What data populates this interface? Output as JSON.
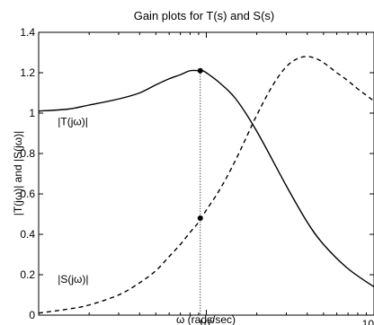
{
  "chart_data": {
    "type": "line",
    "title": "Gain plots for T(s) and S(s)",
    "xlabel": "ω (rads/sec)",
    "ylabel": "|T(jω)| and |S(jω)|",
    "x_scale": "log",
    "xlim": [
      0.1,
      10
    ],
    "ylim": [
      0,
      1.4
    ],
    "x_ticks": [
      {
        "value": 1,
        "label_base": "10",
        "label_exp": "0"
      },
      {
        "value": 10,
        "label_base": "10",
        "label_exp": ""
      }
    ],
    "y_ticks": [
      {
        "value": 0,
        "label": "0"
      },
      {
        "value": 0.2,
        "label": "0.2"
      },
      {
        "value": 0.4,
        "label": "0.4"
      },
      {
        "value": 0.6,
        "label": "0.6"
      },
      {
        "value": 0.8,
        "label": "0.8"
      },
      {
        "value": 1,
        "label": "1"
      },
      {
        "value": 1.2,
        "label": "1.2"
      },
      {
        "value": 1.4,
        "label": "1.4"
      }
    ],
    "grid": false,
    "series": [
      {
        "name": "|T(jω)|",
        "style": "solid",
        "x": [
          0.1,
          0.15,
          0.2,
          0.3,
          0.4,
          0.5,
          0.6,
          0.7,
          0.8,
          0.9,
          0.95,
          1.0,
          1.2,
          1.5,
          2.0,
          3.0,
          4.0,
          5.0,
          7.0,
          10.0
        ],
        "y": [
          1.01,
          1.02,
          1.04,
          1.07,
          1.1,
          1.14,
          1.17,
          1.19,
          1.21,
          1.21,
          1.21,
          1.2,
          1.15,
          1.07,
          0.91,
          0.64,
          0.46,
          0.35,
          0.23,
          0.14
        ]
      },
      {
        "name": "|S(jω)|",
        "style": "dashed",
        "x": [
          0.1,
          0.15,
          0.2,
          0.3,
          0.4,
          0.5,
          0.6,
          0.7,
          0.8,
          0.9,
          1.0,
          1.2,
          1.5,
          2.0,
          2.5,
          3.0,
          3.5,
          4.0,
          4.5,
          5.0,
          6.0,
          7.0,
          8.0,
          10.0
        ],
        "y": [
          0.01,
          0.03,
          0.05,
          0.1,
          0.16,
          0.22,
          0.29,
          0.35,
          0.41,
          0.46,
          0.52,
          0.62,
          0.77,
          0.99,
          1.14,
          1.23,
          1.27,
          1.28,
          1.27,
          1.25,
          1.2,
          1.16,
          1.12,
          1.06
        ]
      }
    ],
    "annotations": [
      {
        "text": "|T(jω)|",
        "x": 0.13,
        "y": 0.94
      },
      {
        "text": "|S(jω)|",
        "x": 0.13,
        "y": 0.16
      }
    ],
    "markers": [
      {
        "x": 0.92,
        "y": 1.21
      },
      {
        "x": 0.92,
        "y": 0.48
      }
    ],
    "vline_x": 0.92
  }
}
